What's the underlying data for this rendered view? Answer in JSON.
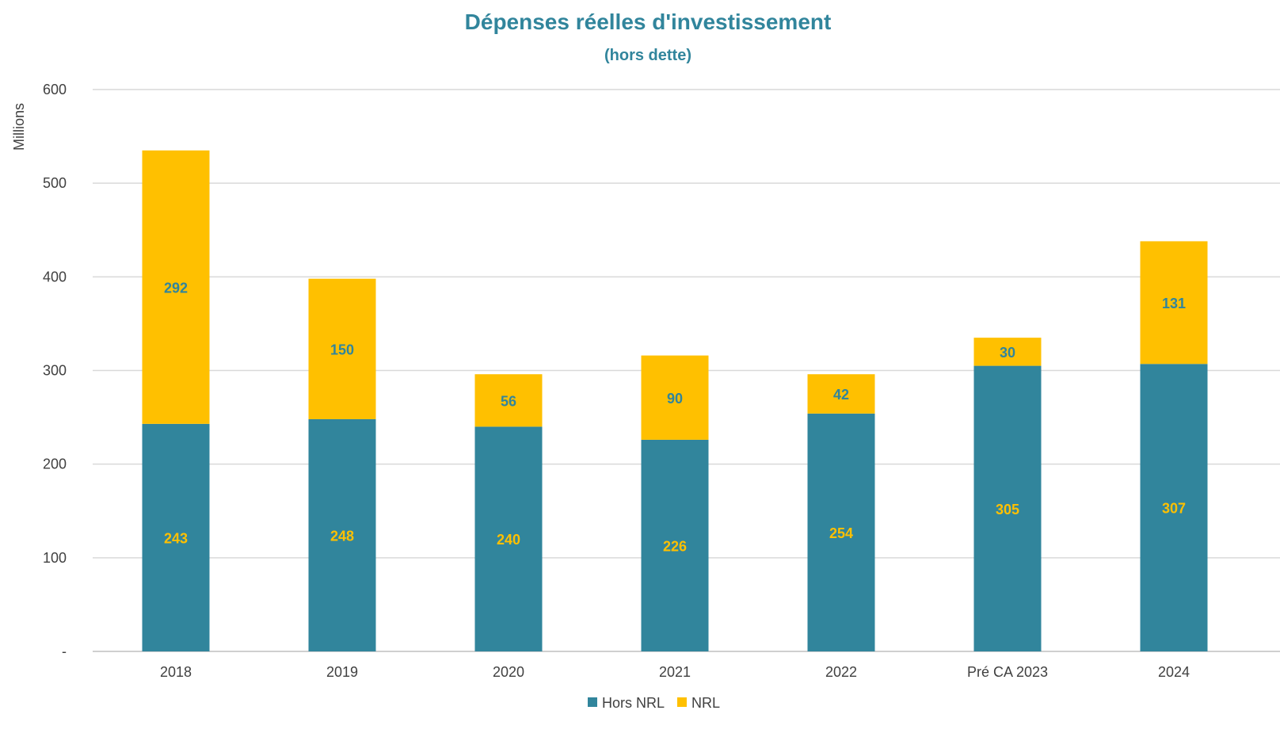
{
  "chart_data": {
    "type": "bar",
    "stacked": true,
    "title": "Dépenses réelles d'investissement",
    "subtitle": "(hors dette)",
    "ylabel": "Millions",
    "xlabel": "",
    "ylim": [
      0,
      600
    ],
    "yticks": [
      {
        "value": 0,
        "label": "-"
      },
      {
        "value": 100,
        "label": "100"
      },
      {
        "value": 200,
        "label": "200"
      },
      {
        "value": 300,
        "label": "300"
      },
      {
        "value": 400,
        "label": "400"
      },
      {
        "value": 500,
        "label": "500"
      },
      {
        "value": 600,
        "label": "600"
      }
    ],
    "grid": true,
    "legend_position": "bottom",
    "categories": [
      "2018",
      "2019",
      "2020",
      "2021",
      "2022",
      "Pré CA 2023",
      "2024"
    ],
    "series": [
      {
        "name": "Hors NRL",
        "color": "#31859c",
        "label_color": "#ffc000",
        "values": [
          243,
          248,
          240,
          226,
          254,
          305,
          307
        ],
        "labels": [
          "243",
          "248",
          "240",
          "226",
          "254",
          "305",
          "307"
        ]
      },
      {
        "name": "NRL",
        "color": "#ffc000",
        "label_color": "#31859c",
        "values": [
          292,
          150,
          56,
          90,
          42,
          30,
          131
        ],
        "labels": [
          "292",
          "150",
          "56",
          "90",
          "42",
          "30",
          "131"
        ]
      }
    ],
    "colors": {
      "title": "#31859c",
      "grid": "#d9d9d9",
      "axis": "#bfbfbf"
    }
  }
}
